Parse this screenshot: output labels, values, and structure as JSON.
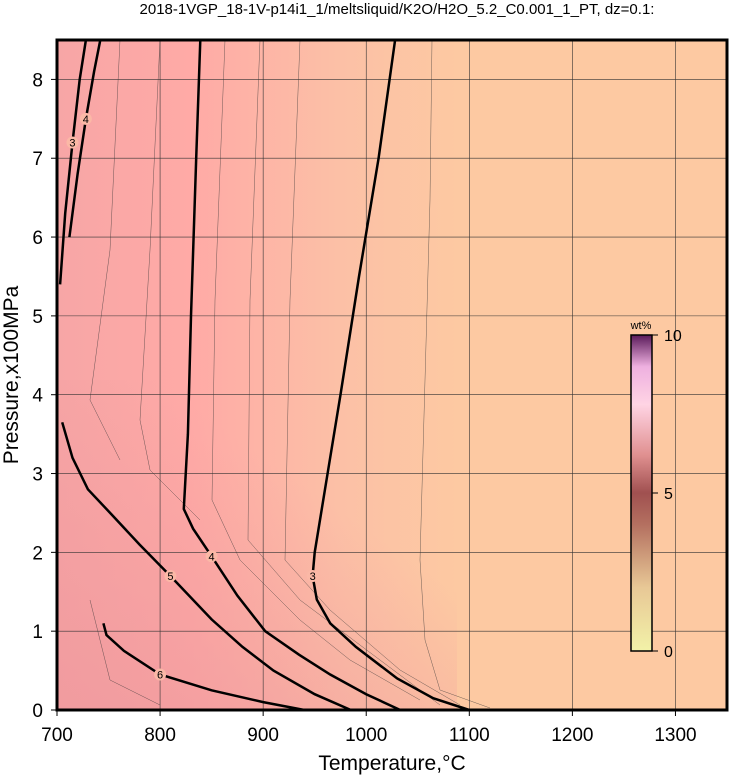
{
  "chart_data": {
    "type": "contour",
    "title": "2018-1VGP_18-1V-p14i1_1/meltsliquid/K2O/H2O_5.2_C0.001_1_PT, dz=0.1:",
    "xlabel": "Temperature,°C",
    "ylabel": "Pressure,x100MPa",
    "xlim": [
      700,
      1350
    ],
    "ylim": [
      0,
      8.5
    ],
    "xticks": [
      700,
      800,
      900,
      1000,
      1100,
      1200,
      1300
    ],
    "yticks": [
      0,
      1,
      2,
      3,
      4,
      5,
      6,
      7,
      8
    ],
    "grid": true,
    "contours": [
      {
        "level": 3,
        "x": [
          1028,
          1012,
          993,
          975,
          960,
          950,
          948,
          952,
          965,
          990,
          1030,
          1065,
          1100
        ],
        "y": [
          8.5,
          7.0,
          5.5,
          4.0,
          2.8,
          2.0,
          1.7,
          1.4,
          1.1,
          0.8,
          0.4,
          0.15,
          0
        ]
      },
      {
        "level": 4,
        "x": [
          839,
          835,
          830,
          827,
          823,
          832,
          850,
          875,
          902,
          935,
          965,
          1000,
          1033
        ],
        "y": [
          8.5,
          7.0,
          5.0,
          3.5,
          2.55,
          2.3,
          1.95,
          1.45,
          1.0,
          0.7,
          0.45,
          0.2,
          0
        ]
      },
      {
        "level": 5,
        "x": [
          705,
          715,
          730,
          753,
          780,
          810,
          850,
          880,
          910,
          950,
          985
        ],
        "y": [
          3.65,
          3.2,
          2.8,
          2.48,
          2.1,
          1.7,
          1.15,
          0.8,
          0.5,
          0.2,
          0
        ]
      },
      {
        "level": 6,
        "x": [
          745,
          748,
          765,
          800,
          850,
          900,
          940
        ],
        "y": [
          1.1,
          0.95,
          0.75,
          0.45,
          0.25,
          0.1,
          0
        ]
      },
      {
        "level": 3,
        "x": [
          703,
          708,
          715,
          722,
          728
        ],
        "y": [
          5.4,
          6.3,
          7.2,
          8.0,
          8.5
        ]
      },
      {
        "level": 4,
        "x": [
          712,
          720,
          728,
          736,
          742
        ],
        "y": [
          6.0,
          6.8,
          7.5,
          8.1,
          8.5
        ]
      }
    ],
    "colorbar": {
      "label": "wt%",
      "lim": [
        0,
        10
      ],
      "ticks": [
        0,
        5,
        10
      ]
    }
  }
}
